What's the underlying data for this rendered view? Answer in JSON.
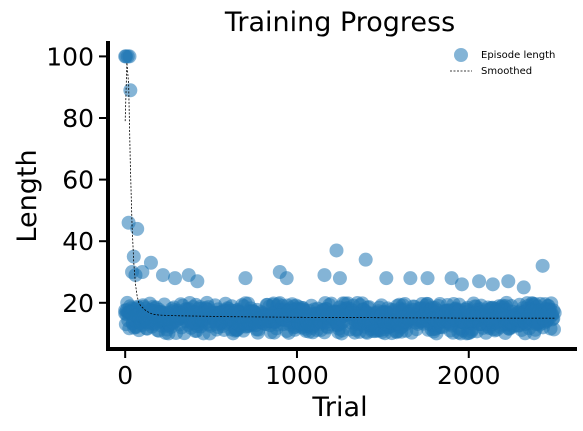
{
  "chart_data": {
    "type": "scatter",
    "title": "Training Progress",
    "xlabel": "Trial",
    "ylabel": "Length",
    "xlim": [
      -100,
      2630
    ],
    "ylim": [
      5,
      105
    ],
    "x_ticks": [
      0,
      1000,
      2000
    ],
    "y_ticks": [
      20,
      40,
      60,
      80,
      100
    ],
    "grid": false,
    "legend": {
      "placement": "top-right",
      "entries": [
        "Episode length",
        "Smoothed"
      ]
    },
    "colors": {
      "points": "#1f77b4",
      "smoothed": "#000000",
      "spines": "#000000"
    },
    "series": [
      {
        "name": "Episode length",
        "style": "scatter",
        "band": {
          "x_start": 0,
          "x_end": 2500,
          "y_min": 10,
          "y_max": 20
        },
        "highlighted_points": [
          {
            "x": 0,
            "y": 100
          },
          {
            "x": 5,
            "y": 100
          },
          {
            "x": 15,
            "y": 100
          },
          {
            "x": 25,
            "y": 100
          },
          {
            "x": 30,
            "y": 89
          },
          {
            "x": 20,
            "y": 46
          },
          {
            "x": 70,
            "y": 44
          },
          {
            "x": 50,
            "y": 35
          },
          {
            "x": 40,
            "y": 30
          },
          {
            "x": 60,
            "y": 29
          },
          {
            "x": 100,
            "y": 30
          },
          {
            "x": 150,
            "y": 33
          },
          {
            "x": 220,
            "y": 29
          },
          {
            "x": 290,
            "y": 28
          },
          {
            "x": 370,
            "y": 29
          },
          {
            "x": 420,
            "y": 27
          },
          {
            "x": 700,
            "y": 28
          },
          {
            "x": 900,
            "y": 30
          },
          {
            "x": 940,
            "y": 28
          },
          {
            "x": 1160,
            "y": 29
          },
          {
            "x": 1230,
            "y": 37
          },
          {
            "x": 1250,
            "y": 28
          },
          {
            "x": 1400,
            "y": 34
          },
          {
            "x": 1520,
            "y": 28
          },
          {
            "x": 1660,
            "y": 28
          },
          {
            "x": 1760,
            "y": 28
          },
          {
            "x": 1900,
            "y": 28
          },
          {
            "x": 1960,
            "y": 26
          },
          {
            "x": 2060,
            "y": 27
          },
          {
            "x": 2140,
            "y": 26
          },
          {
            "x": 2230,
            "y": 27
          },
          {
            "x": 2320,
            "y": 25
          },
          {
            "x": 2430,
            "y": 32
          }
        ]
      },
      {
        "name": "Smoothed",
        "style": "dashed-line",
        "x": [
          0,
          10,
          20,
          30,
          40,
          50,
          60,
          70,
          80,
          90,
          100,
          120,
          140,
          160,
          200,
          300,
          400,
          600,
          800,
          1000,
          1200,
          1400,
          1600,
          1800,
          2000,
          2200,
          2400,
          2500
        ],
        "values": [
          79,
          98,
          91,
          65,
          45,
          33,
          26,
          22,
          20,
          19,
          18.5,
          17.5,
          16.8,
          16.3,
          16.0,
          15.8,
          15.7,
          15.5,
          15.4,
          15.3,
          15.2,
          15.2,
          15.1,
          15.1,
          15.0,
          15.0,
          15.0,
          15.0
        ]
      }
    ]
  }
}
